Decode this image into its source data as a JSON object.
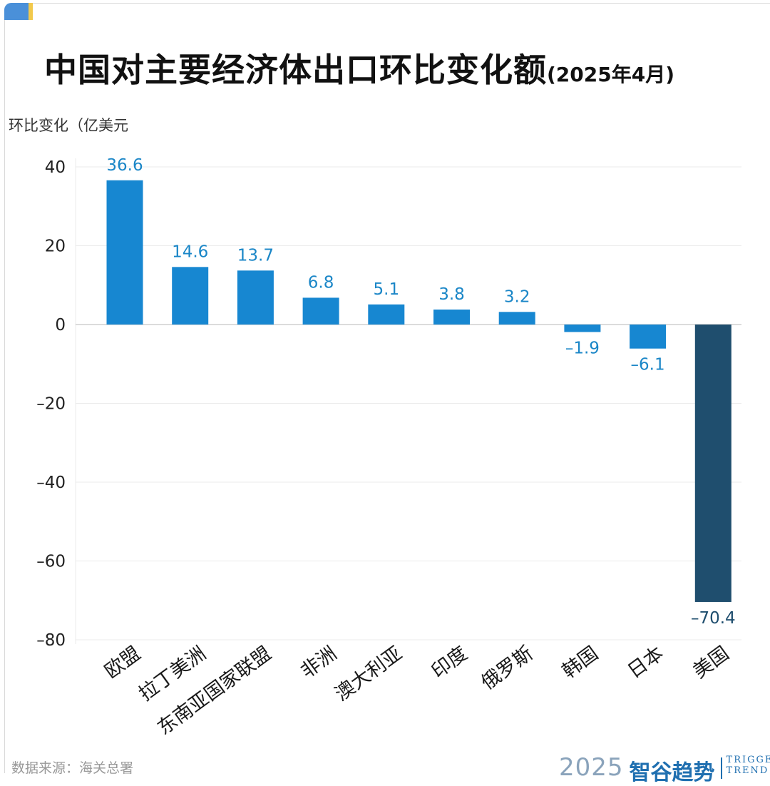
{
  "title": "中国对主要经济体出口环比变化额",
  "title_period": "(2025年4月)",
  "unit_label": "环比变化（亿美元",
  "source": "数据来源：海关总署",
  "brand": {
    "year": "2025",
    "name": "智谷趋势",
    "en_line1": "TRIGGER",
    "en_line2": "TREND"
  },
  "colors": {
    "bar": "#1787d1",
    "highlight": "#1f4e6e",
    "label": "#1a86c7",
    "highlight_label": "#1f4e6e",
    "grid": "#ebebeb",
    "zero_line": "#cfcfcf",
    "accent_blue": "#4a90d9",
    "accent_yellow": "#f2c94c"
  },
  "chart_data": {
    "type": "bar",
    "title": "中国对主要经济体出口环比变化额(2025年4月)",
    "ylabel": "环比变化（亿美元",
    "xlabel": "",
    "ylim": [
      -80,
      40
    ],
    "yticks": [
      40,
      20,
      0,
      -20,
      -40,
      -60,
      -80
    ],
    "ytick_labels": [
      "40",
      "20",
      "0",
      "–20",
      "–40",
      "–60",
      "–80"
    ],
    "grid": true,
    "categories": [
      "欧盟",
      "拉丁美洲",
      "东南亚国家联盟",
      "非洲",
      "澳大利亚",
      "印度",
      "俄罗斯",
      "韩国",
      "日本",
      "美国"
    ],
    "values": [
      36.6,
      14.6,
      13.7,
      6.8,
      5.1,
      3.8,
      3.2,
      -1.9,
      -6.1,
      -70.4
    ],
    "value_labels": [
      "36.6",
      "14.6",
      "13.7",
      "6.8",
      "5.1",
      "3.8",
      "3.2",
      "–1.9",
      "–6.1",
      "–70.4"
    ],
    "highlight_index": 9
  }
}
